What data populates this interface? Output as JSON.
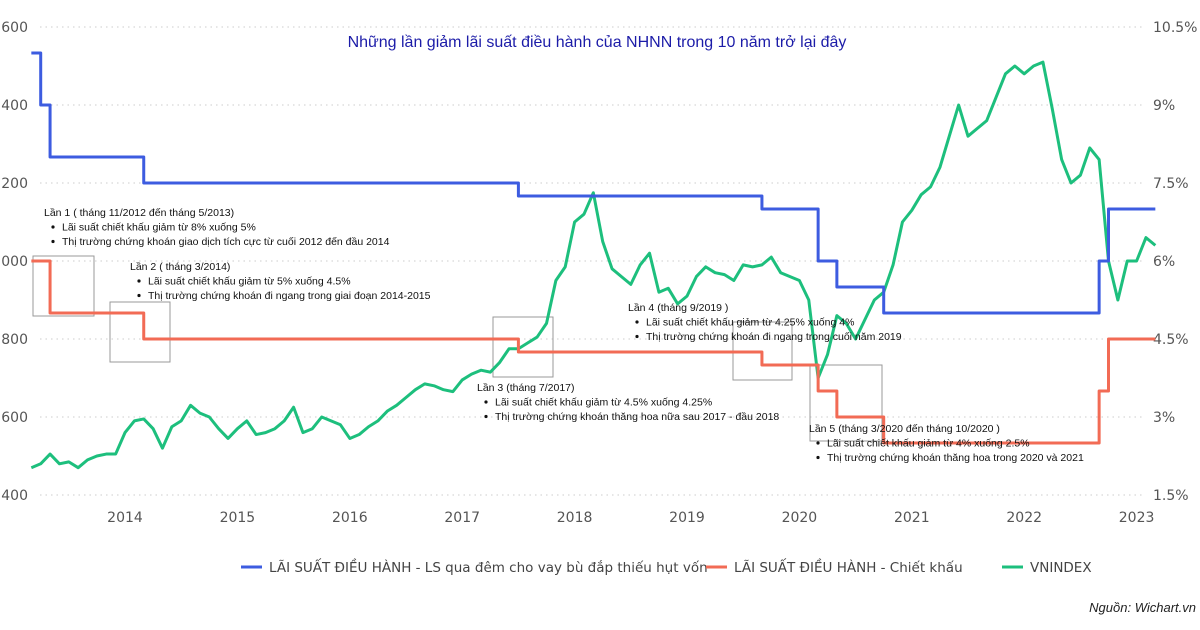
{
  "chart_data": {
    "type": "line",
    "title": "Những lần giảm lãi suất điều hành của NHNN trong 10 năm trở lại đây",
    "source": "Nguồn: Wichart.vn",
    "x_ticks": [
      "2014",
      "2015",
      "2016",
      "2017",
      "2018",
      "2019",
      "2020",
      "2021",
      "2022",
      "2023"
    ],
    "y_left": {
      "ticks": [
        1600,
        1400,
        1200,
        1000,
        800,
        600,
        400
      ],
      "labels": [
        "1,600",
        "1,400",
        "1,200",
        "1,000",
        "800",
        "600",
        "400"
      ],
      "range": [
        400,
        1600
      ]
    },
    "y_right": {
      "ticks": [
        10.5,
        9,
        7.5,
        6,
        4.5,
        3,
        1.5
      ],
      "labels": [
        "10.5%",
        "9%",
        "7.5%",
        "6%",
        "4.5%",
        "3%",
        "1.5%"
      ],
      "range": [
        1.5,
        10.5
      ]
    },
    "grid": "horizontal dotted",
    "legend_position": "bottom",
    "series": [
      {
        "name": "LÃI SUẤT ĐIỀU HÀNH - LS qua đêm cho vay bù đắp thiếu hụt vốn",
        "axis": "right",
        "color": "#3d5ce0",
        "step": true,
        "points": [
          [
            "2013-03",
            10
          ],
          [
            "2013-04",
            9
          ],
          [
            "2013-05",
            8
          ],
          [
            "2014-03",
            7.5
          ],
          [
            "2017-07",
            7.25
          ],
          [
            "2019-09",
            7
          ],
          [
            "2020-03",
            6
          ],
          [
            "2020-05",
            5.5
          ],
          [
            "2020-10",
            5
          ],
          [
            "2022-09",
            6
          ],
          [
            "2022-10",
            7
          ],
          [
            "2023-03",
            7
          ]
        ]
      },
      {
        "name": "LÃI SUẤT ĐIỀU HÀNH - Chiết khấu",
        "axis": "right",
        "color": "#f26b55",
        "step": true,
        "points": [
          [
            "2013-03",
            6
          ],
          [
            "2013-05",
            5
          ],
          [
            "2014-03",
            4.5
          ],
          [
            "2017-07",
            4.25
          ],
          [
            "2019-09",
            4
          ],
          [
            "2020-03",
            3.5
          ],
          [
            "2020-05",
            3
          ],
          [
            "2020-10",
            2.5
          ],
          [
            "2022-09",
            3.5
          ],
          [
            "2022-10",
            4.5
          ],
          [
            "2023-03",
            4.5
          ]
        ]
      },
      {
        "name": "VNINDEX",
        "axis": "left",
        "color": "#1dbf7d",
        "step": false,
        "points": [
          [
            "2013-03",
            470
          ],
          [
            "2013-04",
            480
          ],
          [
            "2013-05",
            505
          ],
          [
            "2013-06",
            480
          ],
          [
            "2013-07",
            485
          ],
          [
            "2013-08",
            470
          ],
          [
            "2013-09",
            490
          ],
          [
            "2013-10",
            500
          ],
          [
            "2013-11",
            505
          ],
          [
            "2013-12",
            505
          ],
          [
            "2014-01",
            560
          ],
          [
            "2014-02",
            590
          ],
          [
            "2014-03",
            595
          ],
          [
            "2014-04",
            570
          ],
          [
            "2014-05",
            520
          ],
          [
            "2014-06",
            575
          ],
          [
            "2014-07",
            590
          ],
          [
            "2014-08",
            630
          ],
          [
            "2014-09",
            610
          ],
          [
            "2014-10",
            600
          ],
          [
            "2014-11",
            570
          ],
          [
            "2014-12",
            545
          ],
          [
            "2015-01",
            570
          ],
          [
            "2015-02",
            590
          ],
          [
            "2015-03",
            555
          ],
          [
            "2015-04",
            560
          ],
          [
            "2015-05",
            570
          ],
          [
            "2015-06",
            590
          ],
          [
            "2015-07",
            625
          ],
          [
            "2015-08",
            560
          ],
          [
            "2015-09",
            570
          ],
          [
            "2015-10",
            600
          ],
          [
            "2015-11",
            590
          ],
          [
            "2015-12",
            580
          ],
          [
            "2016-01",
            545
          ],
          [
            "2016-02",
            555
          ],
          [
            "2016-03",
            575
          ],
          [
            "2016-04",
            590
          ],
          [
            "2016-05",
            615
          ],
          [
            "2016-06",
            630
          ],
          [
            "2016-07",
            650
          ],
          [
            "2016-08",
            670
          ],
          [
            "2016-09",
            685
          ],
          [
            "2016-10",
            680
          ],
          [
            "2016-11",
            670
          ],
          [
            "2016-12",
            665
          ],
          [
            "2017-01",
            695
          ],
          [
            "2017-02",
            710
          ],
          [
            "2017-03",
            720
          ],
          [
            "2017-04",
            715
          ],
          [
            "2017-05",
            740
          ],
          [
            "2017-06",
            775
          ],
          [
            "2017-07",
            775
          ],
          [
            "2017-08",
            790
          ],
          [
            "2017-09",
            805
          ],
          [
            "2017-10",
            840
          ],
          [
            "2017-11",
            950
          ],
          [
            "2017-12",
            985
          ],
          [
            "2018-01",
            1100
          ],
          [
            "2018-02",
            1120
          ],
          [
            "2018-03",
            1175
          ],
          [
            "2018-04",
            1050
          ],
          [
            "2018-05",
            980
          ],
          [
            "2018-06",
            960
          ],
          [
            "2018-07",
            940
          ],
          [
            "2018-08",
            990
          ],
          [
            "2018-09",
            1020
          ],
          [
            "2018-10",
            920
          ],
          [
            "2018-11",
            930
          ],
          [
            "2018-12",
            890
          ],
          [
            "2019-01",
            910
          ],
          [
            "2019-02",
            960
          ],
          [
            "2019-03",
            985
          ],
          [
            "2019-04",
            970
          ],
          [
            "2019-05",
            965
          ],
          [
            "2019-06",
            950
          ],
          [
            "2019-07",
            990
          ],
          [
            "2019-08",
            985
          ],
          [
            "2019-09",
            990
          ],
          [
            "2019-10",
            1010
          ],
          [
            "2019-11",
            970
          ],
          [
            "2019-12",
            960
          ],
          [
            "2020-01",
            950
          ],
          [
            "2020-02",
            900
          ],
          [
            "2020-03",
            700
          ],
          [
            "2020-04",
            760
          ],
          [
            "2020-05",
            860
          ],
          [
            "2020-06",
            840
          ],
          [
            "2020-07",
            800
          ],
          [
            "2020-08",
            850
          ],
          [
            "2020-09",
            900
          ],
          [
            "2020-10",
            920
          ],
          [
            "2020-11",
            990
          ],
          [
            "2020-12",
            1100
          ],
          [
            "2021-01",
            1130
          ],
          [
            "2021-02",
            1170
          ],
          [
            "2021-03",
            1190
          ],
          [
            "2021-04",
            1240
          ],
          [
            "2021-05",
            1320
          ],
          [
            "2021-06",
            1400
          ],
          [
            "2021-07",
            1320
          ],
          [
            "2021-08",
            1340
          ],
          [
            "2021-09",
            1360
          ],
          [
            "2021-10",
            1420
          ],
          [
            "2021-11",
            1480
          ],
          [
            "2021-12",
            1500
          ],
          [
            "2022-01",
            1480
          ],
          [
            "2022-02",
            1500
          ],
          [
            "2022-03",
            1510
          ],
          [
            "2022-04",
            1390
          ],
          [
            "2022-05",
            1260
          ],
          [
            "2022-06",
            1200
          ],
          [
            "2022-07",
            1220
          ],
          [
            "2022-08",
            1290
          ],
          [
            "2022-09",
            1260
          ],
          [
            "2022-10",
            1000
          ],
          [
            "2022-11",
            900
          ],
          [
            "2022-12",
            1000
          ],
          [
            "2023-01",
            1000
          ],
          [
            "2023-02",
            1060
          ],
          [
            "2023-03",
            1040
          ]
        ]
      }
    ],
    "annotations": [
      {
        "lines": [
          "Lần 1 ( tháng 11/2012 đến tháng 5/2013)",
          "Lãi suất chiết khấu giảm từ 8% xuống 5%",
          "Thị trường chứng khoán giao dịch tích cực từ cuối 2012 đến đầu 2014"
        ]
      },
      {
        "lines": [
          "Lần 2 ( tháng 3/2014)",
          "Lãi suất chiết khấu giảm từ 5% xuống 4.5%",
          "Thị trường chứng khoán đi ngang trong giai đoạn 2014-2015"
        ]
      },
      {
        "lines": [
          "Lần 3 (tháng 7/2017)",
          "Lãi suất chiết khấu giảm từ 4.5% xuống 4.25%",
          "Thị trường chứng khoán thăng hoa nữa sau  2017 - đầu 2018"
        ]
      },
      {
        "lines": [
          "Lần 4 (tháng 9/2019 )",
          "Lãi suất chiết khấu giảm từ 4.25% xuống 4%",
          "Thị trường chứng khoán đi ngang trong cuối năm 2019"
        ]
      },
      {
        "lines": [
          "Lần 5 (tháng 3/2020 đến tháng 10/2020 )",
          "Lãi suất chiết khấu giảm từ 4% xuống 2.5%",
          "Thị trường chứng khoán thăng hoa trong 2020 và 2021"
        ]
      }
    ]
  }
}
